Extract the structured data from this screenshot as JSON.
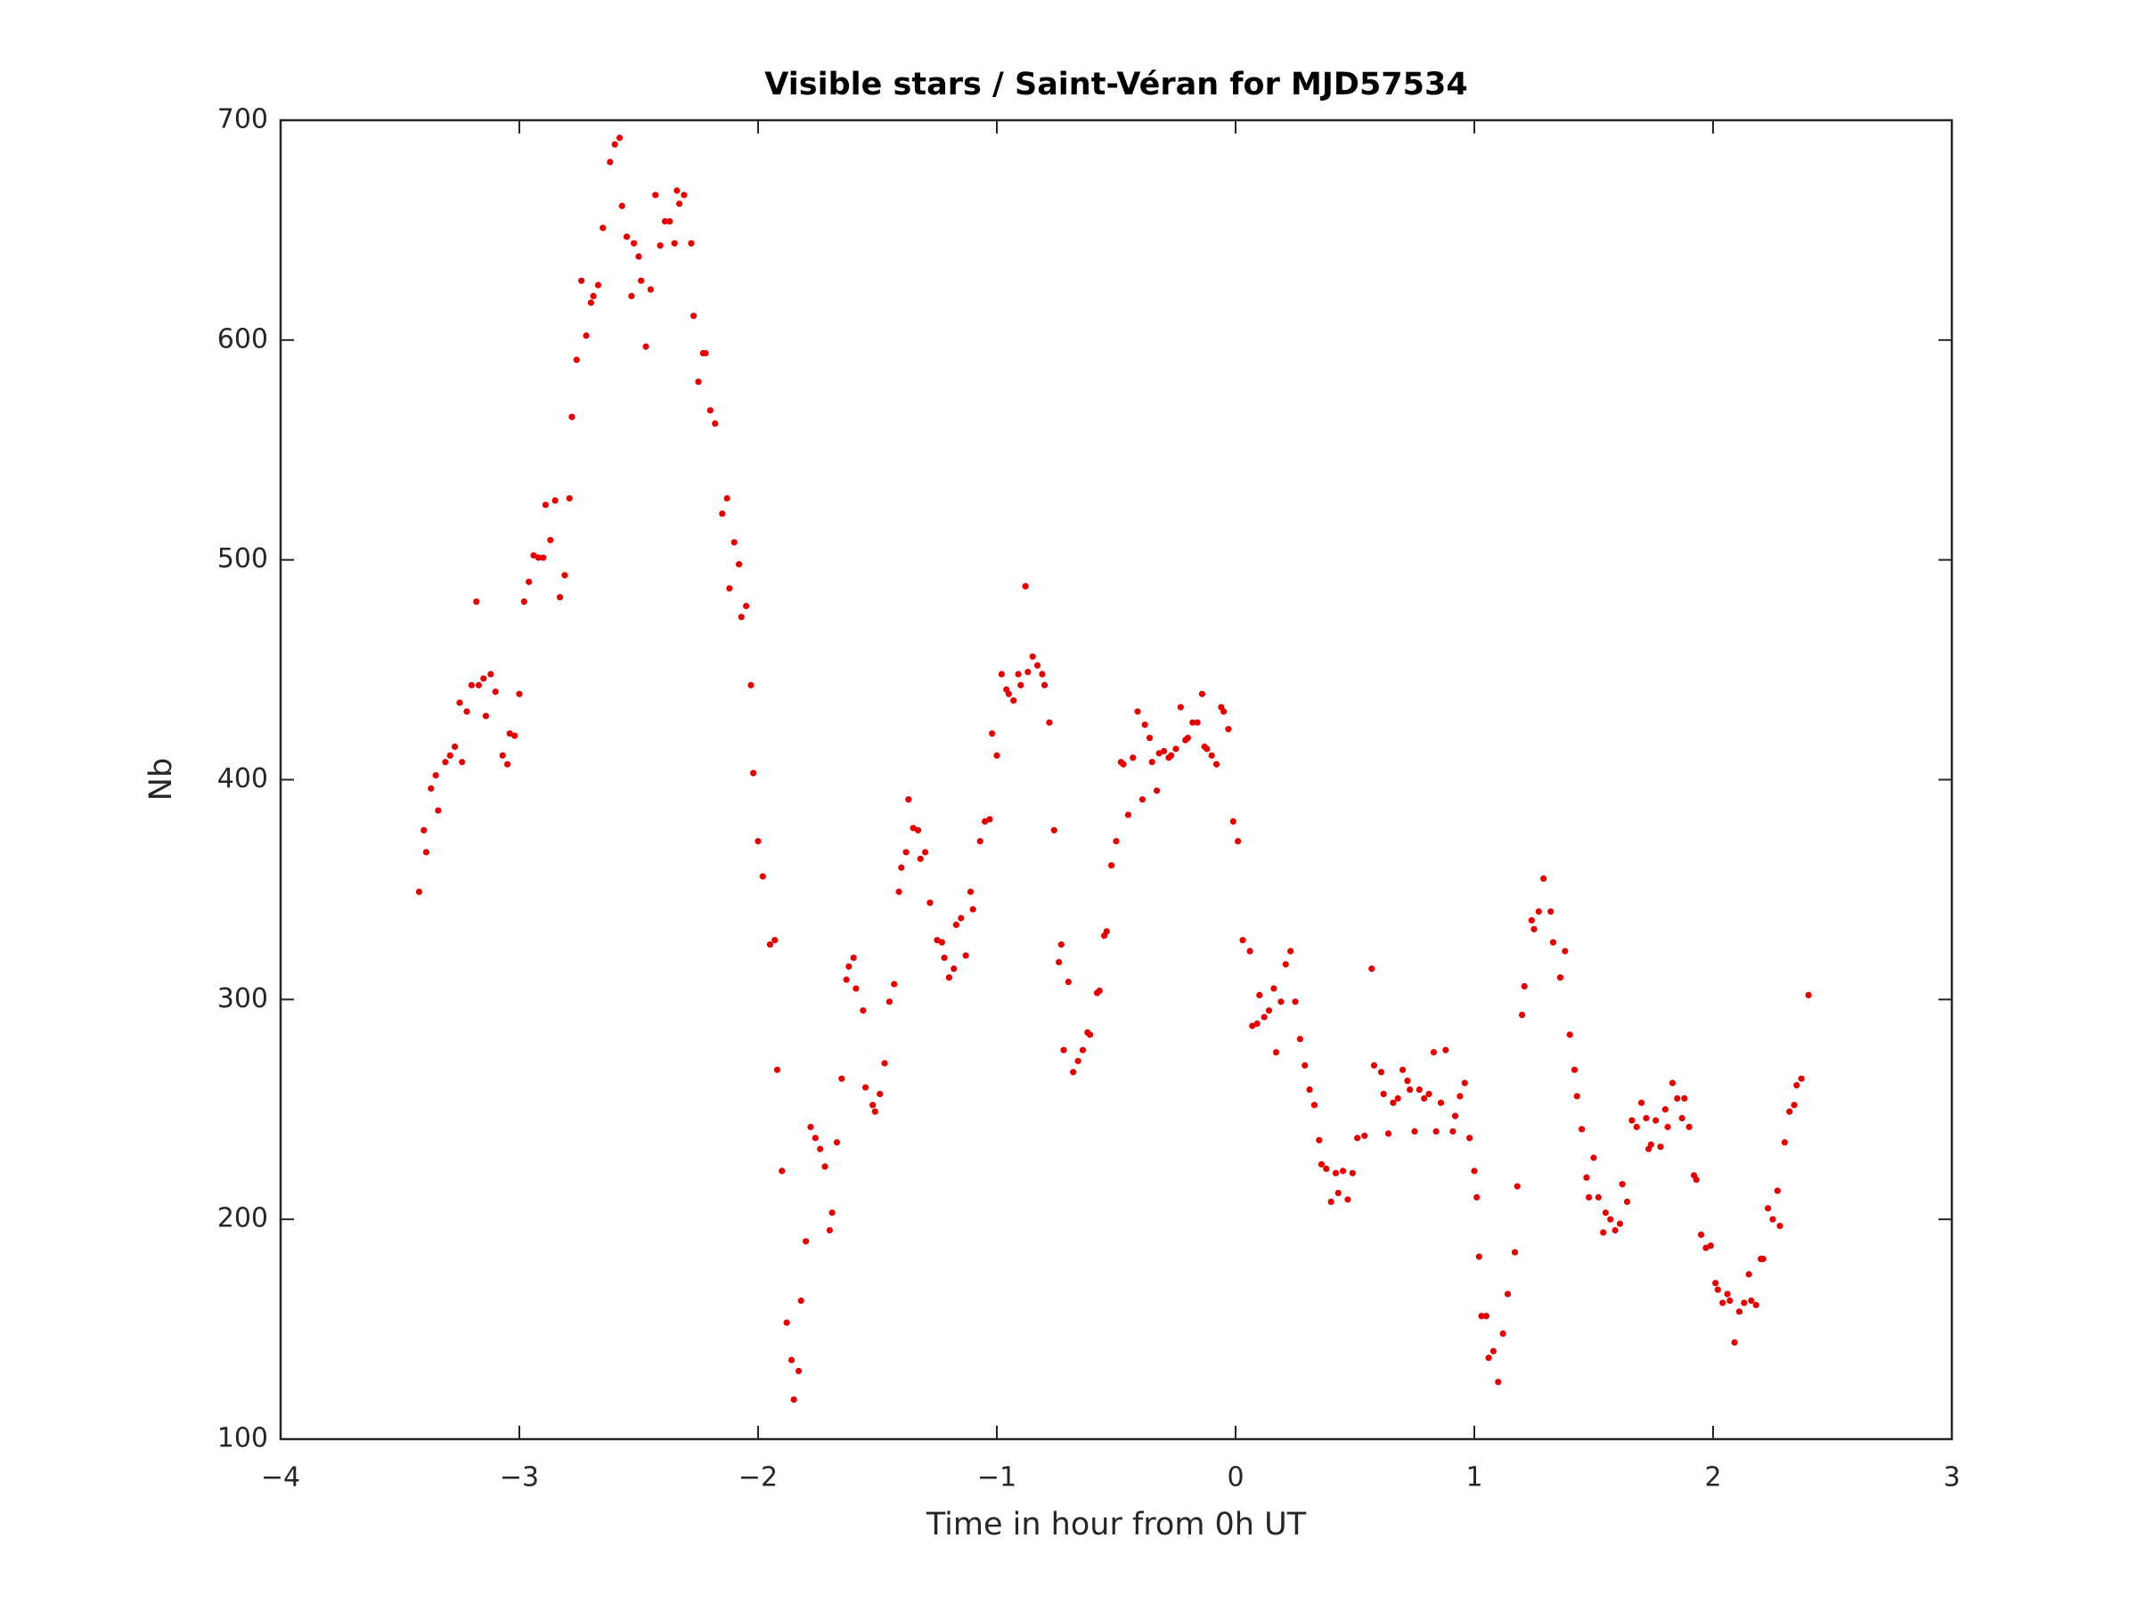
{
  "chart_data": {
    "type": "scatter",
    "title": "Visible stars / Saint-Véran for MJD57534",
    "xlabel": "Time in hour from 0h UT",
    "ylabel": "Nb",
    "color": "#e30000",
    "xlim": [
      -4,
      3
    ],
    "ylim": [
      100,
      700
    ],
    "xticks": [
      {
        "value": -4,
        "label": "−4"
      },
      {
        "value": -3,
        "label": "−3"
      },
      {
        "value": -2,
        "label": "−2"
      },
      {
        "value": -1,
        "label": "−1"
      },
      0,
      1,
      2,
      3
    ],
    "yticks": [
      100,
      200,
      300,
      400,
      500,
      600,
      700
    ],
    "grid": false,
    "x": [
      -3.42,
      -3.4,
      -3.39,
      -3.37,
      -3.35,
      -3.34,
      -3.31,
      -3.29,
      -3.27,
      -3.25,
      -3.24,
      -3.22,
      -3.2,
      -3.18,
      -3.17,
      -3.15,
      -3.14,
      -3.12,
      -3.1,
      -3.07,
      -3.05,
      -3.04,
      -3.02,
      -3.0,
      -2.98,
      -2.96,
      -2.94,
      -2.92,
      -2.9,
      -2.89,
      -2.87,
      -2.85,
      -2.83,
      -2.81,
      -2.79,
      -2.78,
      -2.76,
      -2.74,
      -2.72,
      -2.7,
      -2.69,
      -2.67,
      -2.65,
      -2.62,
      -2.6,
      -2.58,
      -2.57,
      -2.55,
      -2.53,
      -2.52,
      -2.5,
      -2.49,
      -2.47,
      -2.45,
      -2.43,
      -2.41,
      -2.39,
      -2.37,
      -2.35,
      -2.34,
      -2.33,
      -2.31,
      -2.28,
      -2.27,
      -2.25,
      -2.23,
      -2.22,
      -2.2,
      -2.18,
      -2.15,
      -2.13,
      -2.12,
      -2.1,
      -2.08,
      -2.07,
      -2.05,
      -2.03,
      -2.02,
      -2.0,
      -1.98,
      -1.95,
      -1.93,
      -1.92,
      -1.9,
      -1.88,
      -1.86,
      -1.85,
      -1.83,
      -1.82,
      -1.8,
      -1.78,
      -1.76,
      -1.74,
      -1.72,
      -1.7,
      -1.69,
      -1.67,
      -1.65,
      -1.63,
      -1.62,
      -1.6,
      -1.59,
      -1.56,
      -1.55,
      -1.52,
      -1.51,
      -1.49,
      -1.47,
      -1.45,
      -1.43,
      -1.41,
      -1.4,
      -1.38,
      -1.37,
      -1.35,
      -1.33,
      -1.32,
      -1.3,
      -1.28,
      -1.25,
      -1.23,
      -1.22,
      -1.2,
      -1.18,
      -1.17,
      -1.15,
      -1.13,
      -1.11,
      -1.1,
      -1.07,
      -1.05,
      -1.03,
      -1.02,
      -1.0,
      -0.98,
      -0.96,
      -0.95,
      -0.93,
      -0.91,
      -0.9,
      -0.88,
      -0.87,
      -0.85,
      -0.83,
      -0.81,
      -0.8,
      -0.78,
      -0.76,
      -0.74,
      -0.73,
      -0.72,
      -0.7,
      -0.68,
      -0.66,
      -0.64,
      -0.62,
      -0.61,
      -0.58,
      -0.57,
      -0.55,
      -0.54,
      -0.52,
      -0.5,
      -0.48,
      -0.47,
      -0.45,
      -0.43,
      -0.41,
      -0.39,
      -0.38,
      -0.36,
      -0.35,
      -0.33,
      -0.32,
      -0.3,
      -0.28,
      -0.27,
      -0.25,
      -0.23,
      -0.21,
      -0.2,
      -0.18,
      -0.16,
      -0.14,
      -0.13,
      -0.12,
      -0.1,
      -0.08,
      -0.06,
      -0.05,
      -0.03,
      -0.01,
      0.01,
      0.03,
      0.06,
      0.07,
      0.09,
      0.1,
      0.12,
      0.14,
      0.16,
      0.17,
      0.19,
      0.21,
      0.23,
      0.25,
      0.27,
      0.29,
      0.31,
      0.33,
      0.35,
      0.36,
      0.38,
      0.4,
      0.42,
      0.43,
      0.45,
      0.47,
      0.49,
      0.51,
      0.54,
      0.57,
      0.58,
      0.61,
      0.62,
      0.64,
      0.66,
      0.68,
      0.7,
      0.72,
      0.73,
      0.75,
      0.77,
      0.79,
      0.81,
      0.83,
      0.84,
      0.86,
      0.88,
      0.91,
      0.92,
      0.94,
      0.96,
      0.98,
      1.0,
      1.01,
      1.02,
      1.03,
      1.05,
      1.06,
      1.08,
      1.1,
      1.12,
      1.14,
      1.17,
      1.18,
      1.2,
      1.21,
      1.24,
      1.25,
      1.27,
      1.29,
      1.32,
      1.33,
      1.36,
      1.38,
      1.4,
      1.42,
      1.43,
      1.45,
      1.47,
      1.48,
      1.5,
      1.52,
      1.54,
      1.55,
      1.57,
      1.59,
      1.61,
      1.62,
      1.64,
      1.66,
      1.68,
      1.7,
      1.72,
      1.73,
      1.74,
      1.76,
      1.78,
      1.8,
      1.81,
      1.83,
      1.85,
      1.87,
      1.88,
      1.9,
      1.92,
      1.93,
      1.95,
      1.97,
      1.99,
      2.01,
      2.02,
      2.04,
      2.06,
      2.07,
      2.09,
      2.11,
      2.13,
      2.15,
      2.16,
      2.18,
      2.2,
      2.21,
      2.23,
      2.25,
      2.27,
      2.28,
      2.3,
      2.32,
      2.34,
      2.35,
      2.37,
      2.4
    ],
    "values": [
      349,
      377,
      367,
      396,
      402,
      386,
      408,
      411,
      415,
      435,
      408,
      431,
      443,
      481,
      443,
      446,
      429,
      448,
      440,
      411,
      407,
      421,
      420,
      439,
      481,
      490,
      502,
      501,
      501,
      525,
      509,
      527,
      483,
      493,
      528,
      565,
      591,
      627,
      602,
      617,
      620,
      625,
      651,
      681,
      689,
      692,
      661,
      647,
      620,
      644,
      638,
      627,
      597,
      623,
      666,
      643,
      654,
      654,
      644,
      668,
      662,
      666,
      644,
      611,
      581,
      594,
      594,
      568,
      562,
      521,
      528,
      487,
      508,
      498,
      474,
      479,
      443,
      403,
      372,
      356,
      325,
      327,
      268,
      222,
      153,
      136,
      118,
      131,
      163,
      190,
      242,
      237,
      232,
      224,
      195,
      203,
      235,
      264,
      309,
      315,
      319,
      305,
      295,
      260,
      252,
      249,
      257,
      271,
      299,
      307,
      349,
      360,
      367,
      391,
      378,
      377,
      364,
      367,
      344,
      327,
      326,
      319,
      310,
      314,
      334,
      337,
      320,
      349,
      341,
      372,
      381,
      382,
      421,
      411,
      448,
      441,
      439,
      436,
      448,
      443,
      488,
      449,
      456,
      452,
      448,
      443,
      426,
      377,
      317,
      325,
      277,
      308,
      267,
      272,
      277,
      285,
      284,
      303,
      304,
      329,
      331,
      361,
      372,
      408,
      407,
      384,
      410,
      431,
      391,
      425,
      419,
      408,
      395,
      412,
      413,
      410,
      411,
      414,
      433,
      418,
      419,
      426,
      426,
      439,
      415,
      414,
      411,
      407,
      433,
      431,
      423,
      381,
      372,
      327,
      322,
      288,
      289,
      302,
      292,
      295,
      305,
      276,
      299,
      316,
      322,
      299,
      282,
      270,
      259,
      252,
      236,
      225,
      223,
      208,
      221,
      212,
      222,
      209,
      221,
      237,
      238,
      314,
      270,
      267,
      257,
      239,
      253,
      255,
      268,
      263,
      259,
      240,
      259,
      255,
      257,
      276,
      240,
      253,
      277,
      240,
      247,
      256,
      262,
      237,
      222,
      210,
      183,
      156,
      156,
      137,
      140,
      126,
      148,
      166,
      185,
      215,
      293,
      306,
      336,
      332,
      340,
      355,
      340,
      326,
      310,
      322,
      284,
      268,
      256,
      241,
      219,
      210,
      228,
      210,
      194,
      203,
      200,
      195,
      198,
      216,
      208,
      245,
      242,
      253,
      246,
      232,
      234,
      245,
      233,
      250,
      242,
      262,
      255,
      246,
      255,
      242,
      220,
      218,
      193,
      187,
      188,
      171,
      168,
      162,
      166,
      163,
      144,
      158,
      162,
      175,
      163,
      161,
      182,
      182,
      205,
      200,
      213,
      197,
      235,
      249,
      252,
      261,
      264,
      302
    ]
  }
}
